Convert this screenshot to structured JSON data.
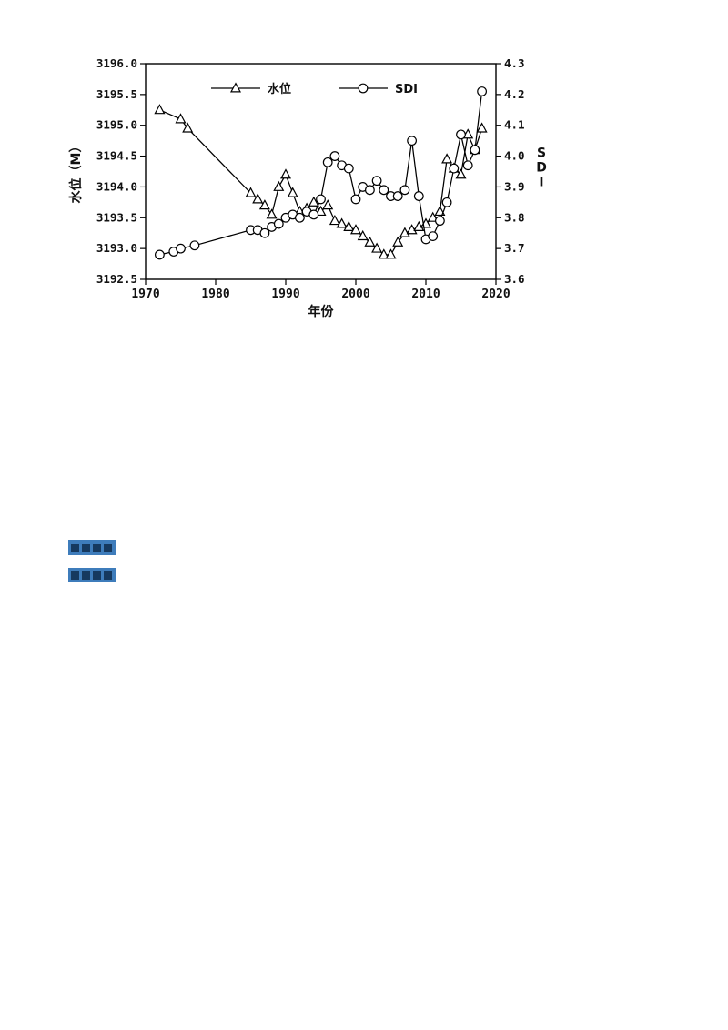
{
  "page": {
    "background": "#ffffff"
  },
  "colors": {
    "chart_stroke": "#000000",
    "marker_fill": "#ffffff",
    "link_highlight_bg": "#3e7cbb",
    "link_highlight_text": "#16395f"
  },
  "links": [
    {
      "label": ""
    },
    {
      "label": ""
    }
  ],
  "chart_data": {
    "type": "line",
    "title": "",
    "xlabel": "年份",
    "xlim": [
      1970,
      2020
    ],
    "x_ticks": [
      1970,
      1980,
      1990,
      2000,
      2010,
      2020
    ],
    "grid": false,
    "legend_position": "top-inside",
    "left_axis": {
      "label": "水位（M）",
      "lim": [
        3192.5,
        3196.0
      ],
      "tick_step": 0.5,
      "tick_labels": [
        "3192.5",
        "3193.0",
        "3193.5",
        "3194.0",
        "3194.5",
        "3195.0",
        "3195.5",
        "3196.0"
      ]
    },
    "right_axis": {
      "label": "SDI",
      "lim": [
        3.6,
        4.3
      ],
      "tick_step": 0.1,
      "tick_labels": [
        "3.6",
        "3.7",
        "3.8",
        "3.9",
        "4.0",
        "4.1",
        "4.2",
        "4.3"
      ]
    },
    "series": [
      {
        "name": "水位",
        "axis": "left",
        "marker": "triangle",
        "x": [
          1972,
          1975,
          1976,
          1985,
          1986,
          1987,
          1988,
          1989,
          1990,
          1991,
          1992,
          1993,
          1994,
          1995,
          1996,
          1997,
          1998,
          1999,
          2000,
          2001,
          2002,
          2003,
          2004,
          2005,
          2006,
          2007,
          2008,
          2009,
          2010,
          2011,
          2012,
          2013,
          2014,
          2015,
          2016,
          2017,
          2018
        ],
        "values": [
          3195.25,
          3195.1,
          3194.95,
          3193.9,
          3193.8,
          3193.7,
          3193.55,
          3194.0,
          3194.2,
          3193.9,
          3193.6,
          3193.65,
          3193.75,
          3193.6,
          3193.7,
          3193.45,
          3193.4,
          3193.35,
          3193.3,
          3193.2,
          3193.1,
          3193.0,
          3192.9,
          3192.9,
          3193.1,
          3193.25,
          3193.3,
          3193.35,
          3193.4,
          3193.5,
          3193.6,
          3194.45,
          3194.3,
          3194.2,
          3194.85,
          3194.6,
          3194.95
        ]
      },
      {
        "name": "SDI",
        "axis": "right",
        "marker": "circle",
        "x": [
          1972,
          1974,
          1975,
          1977,
          1985,
          1986,
          1987,
          1988,
          1989,
          1990,
          1991,
          1992,
          1993,
          1994,
          1995,
          1996,
          1997,
          1998,
          1999,
          2000,
          2001,
          2002,
          2003,
          2004,
          2005,
          2006,
          2007,
          2008,
          2009,
          2010,
          2011,
          2012,
          2013,
          2014,
          2015,
          2016,
          2017,
          2018
        ],
        "values": [
          3.68,
          3.69,
          3.7,
          3.71,
          3.76,
          3.76,
          3.75,
          3.77,
          3.78,
          3.8,
          3.81,
          3.8,
          3.82,
          3.81,
          3.86,
          3.98,
          4.0,
          3.97,
          3.96,
          3.86,
          3.9,
          3.89,
          3.92,
          3.89,
          3.87,
          3.87,
          3.89,
          4.05,
          3.87,
          3.73,
          3.74,
          3.79,
          3.85,
          3.96,
          4.07,
          3.97,
          4.02,
          4.21
        ]
      }
    ]
  }
}
